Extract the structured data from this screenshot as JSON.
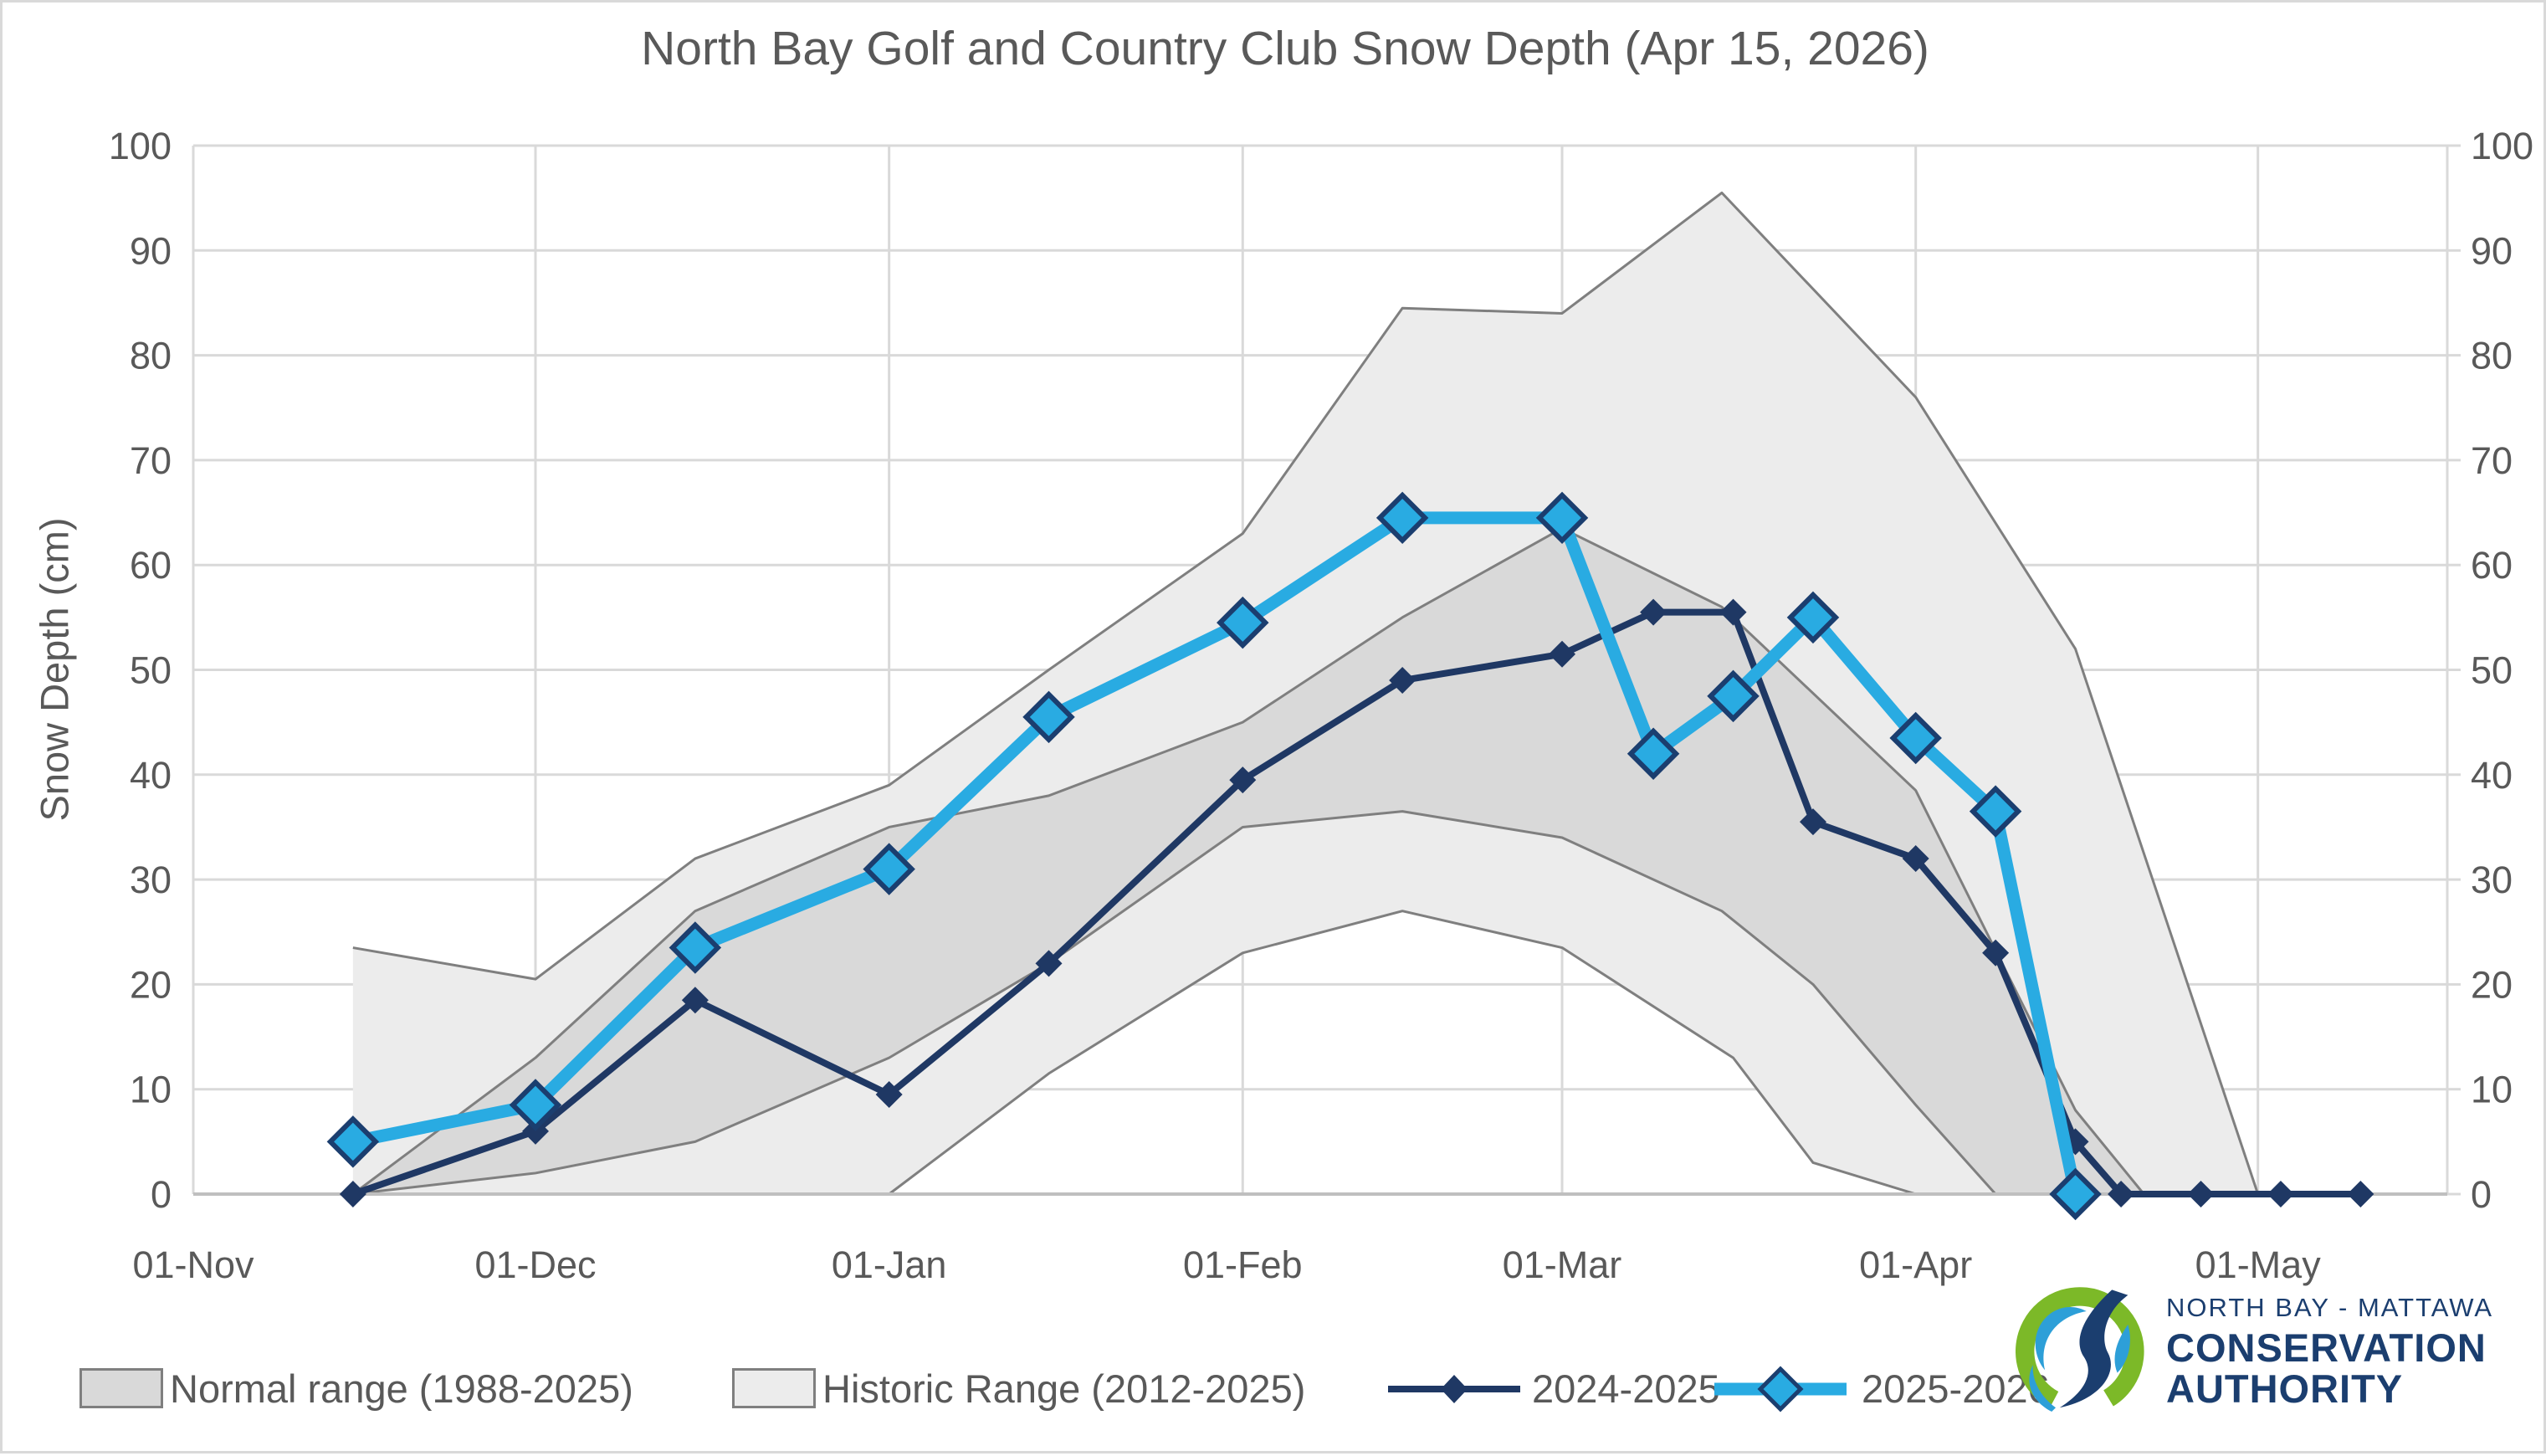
{
  "title": "North Bay Golf and Country Club Snow Depth (Apr 15, 2026)",
  "y_axis": {
    "title": "Snow Depth (cm)",
    "tick_labels": [
      "0",
      "10",
      "20",
      "30",
      "40",
      "50",
      "60",
      "70",
      "80",
      "90",
      "100"
    ],
    "min": 0,
    "max": 100,
    "step": 10,
    "shown_on": "both sides"
  },
  "x_axis": {
    "tick_labels": [
      "01-Nov",
      "01-Dec",
      "01-Jan",
      "01-Feb",
      "01-Mar",
      "01-Apr",
      "01-May"
    ],
    "tick_days": [
      0,
      30,
      61,
      92,
      120,
      151,
      181
    ]
  },
  "legend": {
    "items": [
      {
        "label": "Normal range (1988-2025)",
        "type": "band",
        "fill": "#d9d9d9"
      },
      {
        "label": "Historic Range (2012-2025)",
        "type": "band",
        "fill": "#ececec"
      },
      {
        "label": "2024-2025",
        "type": "line",
        "color": "#1f3864"
      },
      {
        "label": "2025-2026",
        "type": "line",
        "color": "#29abe2"
      }
    ]
  },
  "logo": {
    "line1": "NORTH BAY - MATTAWA",
    "line2": "CONSERVATION",
    "line3": "AUTHORITY",
    "mark_colors": {
      "green": "#7cb928",
      "blue": "#2d9fd8",
      "navy": "#1b3e6f"
    }
  },
  "colors": {
    "text": "#595959",
    "gridline": "#d9d9d9",
    "axis_line": "#bfbfbf",
    "band_stroke": "#7f7f7f",
    "historic_fill": "#ececec",
    "normal_fill": "#d9d9d9",
    "series_2024": "#1f3864",
    "series_2025": "#29abe2",
    "marker_edge": "#1b3e6f"
  },
  "chart_data": {
    "type": "line",
    "title": "North Bay Golf and Country Club Snow Depth (Apr 15, 2026)",
    "xlabel": "",
    "ylabel": "Snow Depth (cm)",
    "ylim": [
      0,
      100
    ],
    "xlim_days_from_nov1": [
      0,
      197.6
    ],
    "grid": true,
    "legend_position": "bottom",
    "bands": [
      {
        "name": "Historic Range (2012-2025)",
        "fill": "#ececec",
        "upper": {
          "dates": [
            "15-Nov",
            "01-Dec",
            "15-Dec",
            "01-Jan",
            "15-Jan",
            "01-Feb",
            "15-Feb",
            "01-Mar",
            "15-Mar",
            "01-Apr",
            "15-Apr",
            "01-May"
          ],
          "days": [
            14,
            30,
            44,
            61,
            75,
            92,
            106,
            120,
            134,
            151,
            165,
            181
          ],
          "values": [
            23.5,
            20.5,
            32,
            39,
            50,
            63,
            84.5,
            84,
            95.5,
            76,
            52,
            0
          ]
        },
        "lower": {
          "dates": [
            "15-Nov",
            "01-Jan",
            "15-Jan",
            "01-Feb",
            "15-Feb",
            "01-Mar",
            "16-Mar",
            "23-Mar",
            "01-Apr",
            "01-May"
          ],
          "days": [
            14,
            61,
            75,
            92,
            106,
            120,
            135,
            142,
            151,
            181
          ],
          "values": [
            0,
            0,
            11.5,
            23,
            27,
            23.5,
            13,
            3,
            0,
            0
          ]
        }
      },
      {
        "name": "Normal range (1988-2025)",
        "fill": "#d9d9d9",
        "upper": {
          "dates": [
            "15-Nov",
            "01-Dec",
            "15-Dec",
            "01-Jan",
            "15-Jan",
            "01-Feb",
            "15-Feb",
            "01-Mar",
            "15-Mar",
            "01-Apr",
            "15-Apr",
            "21-Apr"
          ],
          "days": [
            14,
            30,
            44,
            61,
            75,
            92,
            106,
            120,
            134,
            151,
            165,
            171
          ],
          "values": [
            0,
            13,
            27,
            35,
            38,
            45,
            55,
            63.5,
            56,
            38.5,
            8,
            0
          ]
        },
        "lower": {
          "dates": [
            "15-Nov",
            "01-Dec",
            "15-Dec",
            "01-Jan",
            "15-Jan",
            "01-Feb",
            "15-Feb",
            "01-Mar",
            "15-Mar",
            "23-Mar",
            "01-Apr",
            "08-Apr"
          ],
          "days": [
            14,
            30,
            44,
            61,
            75,
            92,
            106,
            120,
            134,
            142,
            151,
            158
          ],
          "values": [
            0,
            2,
            5,
            13,
            22,
            35,
            36.5,
            34,
            27,
            20,
            8.5,
            0
          ]
        }
      }
    ],
    "series": [
      {
        "name": "2024-2025",
        "color": "#1f3864",
        "line_width": 8,
        "marker": "diamond-small",
        "dates": [
          "15-Nov",
          "01-Dec",
          "15-Dec",
          "01-Jan",
          "15-Jan",
          "01-Feb",
          "15-Feb",
          "01-Mar",
          "09-Mar",
          "16-Mar",
          "23-Mar",
          "01-Apr",
          "08-Apr",
          "15-Apr",
          "19-Apr",
          "26-Apr",
          "03-May",
          "10-May"
        ],
        "days": [
          14,
          30,
          44,
          61,
          75,
          92,
          106,
          120,
          128,
          135,
          142,
          151,
          158,
          165,
          169,
          176,
          183,
          190
        ],
        "values": [
          0,
          6,
          18.5,
          9.5,
          22,
          39.5,
          49,
          51.5,
          55.5,
          55.5,
          35.5,
          32,
          23,
          5,
          0,
          0,
          0,
          0
        ]
      },
      {
        "name": "2025-2026",
        "color": "#29abe2",
        "line_width": 15,
        "marker": "diamond-large",
        "dates": [
          "15-Nov",
          "01-Dec",
          "15-Dec",
          "01-Jan",
          "15-Jan",
          "01-Feb",
          "15-Feb",
          "01-Mar",
          "09-Mar",
          "16-Mar",
          "23-Mar",
          "01-Apr",
          "08-Apr",
          "15-Apr"
        ],
        "days": [
          14,
          30,
          44,
          61,
          75,
          92,
          106,
          120,
          128,
          135,
          142,
          151,
          158,
          165
        ],
        "values": [
          5,
          8.5,
          23.5,
          31,
          45.5,
          54.5,
          64.5,
          64.5,
          42,
          47.5,
          55,
          43.5,
          36.5,
          0
        ]
      }
    ]
  }
}
